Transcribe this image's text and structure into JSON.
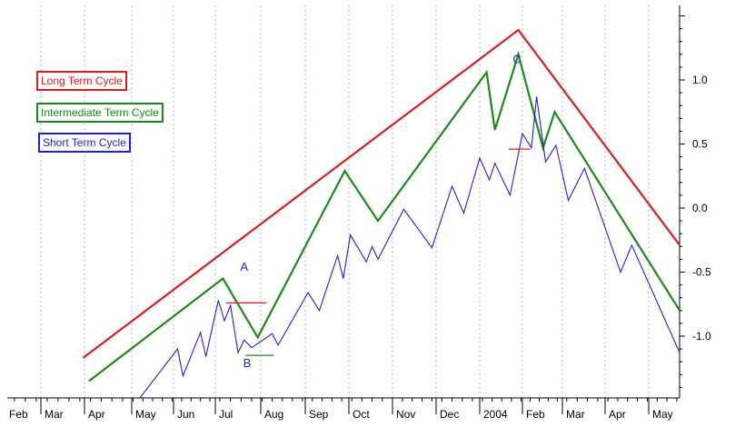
{
  "chart_data": {
    "type": "line",
    "title": "",
    "xlabel": "",
    "ylabel": "",
    "x_tick_labels": [
      "Feb",
      "Mar",
      "Apr",
      "May",
      "Jun",
      "Jul",
      "Aug",
      "Sep",
      "Oct",
      "Nov",
      "Dec",
      "2004",
      "Feb",
      "Mar",
      "Apr",
      "May"
    ],
    "y_tick_labels": [
      "1.0",
      "0.5",
      "0.0",
      "-0.5",
      "-1.0"
    ],
    "ylim": [
      -1.48,
      1.56
    ],
    "y_axis_position": "right",
    "grid": "vertical dotted",
    "legend": [
      {
        "label": "Long Term Cycle",
        "color": "#e31a1c"
      },
      {
        "label": "Intermediate Term Cycle",
        "color": "#1a8a1a"
      },
      {
        "label": "Short Term Cycle",
        "color": "#1f1fe0"
      }
    ],
    "legend_placement": "top-left",
    "series": [
      {
        "color": "#e31a1c",
        "points": [
          [
            "2003-02-28",
            -1.17
          ],
          [
            "2003-12-29",
            1.39
          ],
          [
            "2004-04-23",
            -0.29
          ]
        ]
      },
      {
        "color": "#1a8a1a",
        "points": [
          [
            "2003-03-04",
            -1.35
          ],
          [
            "2003-06-06",
            -0.55
          ],
          [
            "2003-06-29",
            -1.01
          ],
          [
            "2003-08-29",
            0.29
          ],
          [
            "2003-09-21",
            -0.1
          ],
          [
            "2003-12-06",
            1.06
          ],
          [
            "2003-12-12",
            0.61
          ],
          [
            "2003-12-29",
            1.2
          ],
          [
            "2004-01-17",
            0.47
          ],
          [
            "2004-01-26",
            0.75
          ],
          [
            "2004-04-23",
            -0.8
          ]
        ]
      },
      {
        "color": "#1f1fe0",
        "points": [
          [
            "2003-04-07",
            -1.48
          ],
          [
            "2003-05-04",
            -1.1
          ],
          [
            "2003-05-08",
            -1.31
          ],
          [
            "2003-05-21",
            -0.97
          ],
          [
            "2003-05-25",
            -1.16
          ],
          [
            "2003-06-03",
            -0.72
          ],
          [
            "2003-06-07",
            -0.88
          ],
          [
            "2003-06-11",
            -0.76
          ],
          [
            "2003-06-16",
            -1.13
          ],
          [
            "2003-06-20",
            -1.03
          ],
          [
            "2003-06-25",
            -1.09
          ],
          [
            "2003-07-09",
            -0.98
          ],
          [
            "2003-07-13",
            -1.07
          ],
          [
            "2003-08-03",
            -0.66
          ],
          [
            "2003-08-11",
            -0.8
          ],
          [
            "2003-08-24",
            -0.37
          ],
          [
            "2003-08-28",
            -0.55
          ],
          [
            "2003-09-02",
            -0.21
          ],
          [
            "2003-09-13",
            -0.42
          ],
          [
            "2003-09-17",
            -0.3
          ],
          [
            "2003-09-21",
            -0.4
          ],
          [
            "2003-10-09",
            -0.01
          ],
          [
            "2003-10-29",
            -0.31
          ],
          [
            "2003-11-12",
            0.17
          ],
          [
            "2003-11-20",
            -0.04
          ],
          [
            "2003-12-01",
            0.39
          ],
          [
            "2003-12-08",
            0.22
          ],
          [
            "2003-12-12",
            0.35
          ],
          [
            "2003-12-23",
            0.1
          ],
          [
            "2004-01-01",
            0.58
          ],
          [
            "2004-01-08",
            0.47
          ],
          [
            "2004-01-12",
            0.87
          ],
          [
            "2004-01-19",
            0.36
          ],
          [
            "2004-01-27",
            0.49
          ],
          [
            "2004-02-05",
            0.06
          ],
          [
            "2004-02-16",
            0.31
          ],
          [
            "2004-03-12",
            -0.5
          ],
          [
            "2004-03-20",
            -0.29
          ],
          [
            "2004-04-23",
            -1.13
          ]
        ]
      }
    ],
    "markers": [
      {
        "color": "#e31a1c",
        "x": [
          "2003-06-08",
          "2003-07-05"
        ],
        "y": -0.74
      },
      {
        "color": "#1a8a1a",
        "x": [
          "2003-06-21",
          "2003-07-10"
        ],
        "y": -1.15
      },
      {
        "color": "#e31a1c",
        "x": [
          "2003-12-22",
          "2004-01-07"
        ],
        "y": 0.46
      }
    ],
    "annotations": [
      {
        "text": "A",
        "x": "2003-06-20",
        "y": -0.49,
        "color": "#1f1fe0"
      },
      {
        "text": "B",
        "x": "2003-06-22",
        "y": -1.24,
        "color": "#1f1fe0"
      },
      {
        "text": "C",
        "x": "2003-12-28",
        "y": 1.13,
        "color": "#1f1fe0"
      }
    ]
  }
}
